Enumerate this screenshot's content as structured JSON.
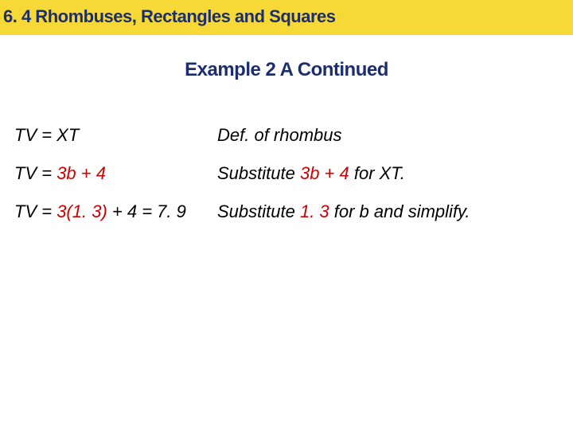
{
  "colors": {
    "header_bg": "#f6d936",
    "header_text": "#1c2e6e",
    "subtitle": "#1c2e6e",
    "body_text": "#000000",
    "highlight_red": "#cc0000"
  },
  "fontsize": {
    "header": 22,
    "subtitle": 24,
    "body": 22
  },
  "header": {
    "title": "6. 4 Rhombuses, Rectangles and Squares"
  },
  "subtitle": "Example 2 A Continued",
  "rows": [
    {
      "left_prefix": "TV = XT",
      "left_mid": "",
      "left_suffix": "",
      "right_prefix": "Def. of rhombus",
      "right_mid": "",
      "right_suffix": ""
    },
    {
      "left_prefix": "TV = ",
      "left_mid": "3b + 4",
      "left_suffix": "",
      "right_prefix": "Substitute ",
      "right_mid": "3b + 4",
      "right_suffix": " for XT."
    },
    {
      "left_prefix": "TV = ",
      "left_mid": "3(1. 3)",
      "left_suffix": " + 4 = 7. 9",
      "right_prefix": "Substitute ",
      "right_mid": "1. 3",
      "right_suffix": " for b and simplify."
    }
  ]
}
